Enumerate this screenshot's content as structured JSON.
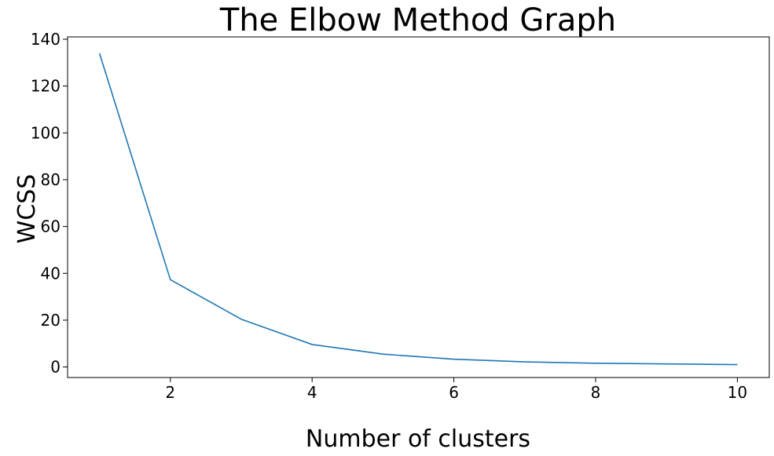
{
  "chart_data": {
    "type": "line",
    "title": "The Elbow Method Graph",
    "xlabel": "Number of clusters",
    "ylabel": "WCSS",
    "xlim": [
      0.55,
      10.45
    ],
    "ylim": [
      -4.5,
      141
    ],
    "xticks": [
      2,
      4,
      6,
      8,
      10
    ],
    "yticks": [
      0,
      20,
      40,
      60,
      80,
      100,
      120,
      140
    ],
    "grid": false,
    "series": [
      {
        "color": "#1f77b4",
        "x": [
          1,
          2,
          3,
          4,
          5,
          6,
          7,
          8,
          9,
          10
        ],
        "y": [
          134,
          37.3,
          20.4,
          9.6,
          5.5,
          3.3,
          2.2,
          1.6,
          1.3,
          1.0
        ]
      }
    ]
  }
}
